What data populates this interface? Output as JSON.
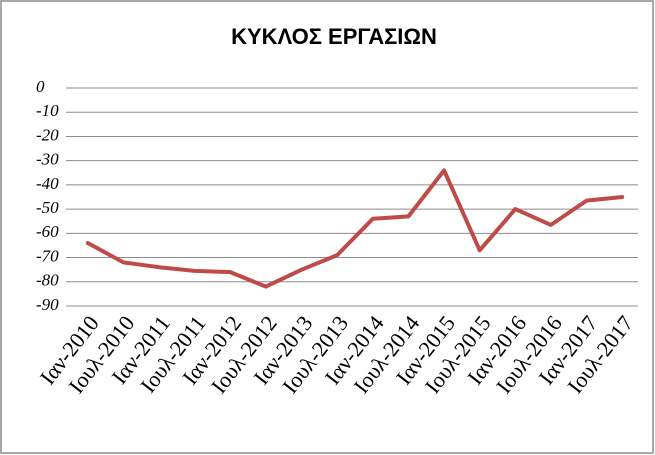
{
  "chart_data": {
    "type": "line",
    "title": "ΚΥΚΛΟΣ ΕΡΓΑΣΙΩΝ",
    "categories": [
      "Ιαν-2010",
      "Ιουλ-2010",
      "Ιαν-2011",
      "Ιουλ-2011",
      "Ιαν-2012",
      "Ιουλ-2012",
      "Ιαν-2013",
      "Ιουλ-2013",
      "Ιαν-2014",
      "Ιουλ-2014",
      "Ιαν-2015",
      "Ιουλ-2015",
      "Ιαν-2016",
      "Ιουλ-2016",
      "Ιαν-2017",
      "Ιουλ-2017"
    ],
    "values": [
      -64,
      -72,
      -74,
      -75.5,
      -76,
      -82,
      -75,
      -69,
      -54,
      -53,
      -34,
      -67,
      -50,
      -56.5,
      -46.5,
      -45
    ],
    "color": "#be4b48",
    "ylim": [
      -90,
      0
    ],
    "yticks": [
      0,
      -10,
      -20,
      -30,
      -40,
      -50,
      -60,
      -70,
      -80,
      -90
    ],
    "grid": true
  }
}
